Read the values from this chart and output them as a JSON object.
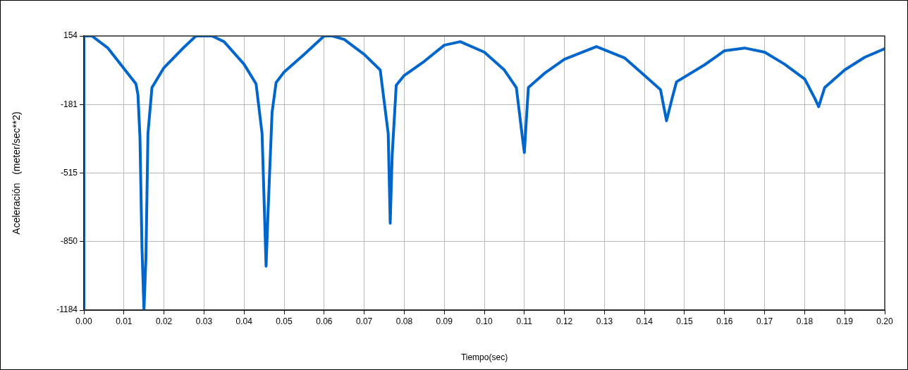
{
  "chart_data": {
    "type": "line",
    "xlabel": "Tiempo(sec)",
    "ylabel": "Aceleración   (meter/sec**2)",
    "x": [
      0,
      0,
      0.002,
      0.006,
      0.01,
      0.013,
      0.0135,
      0.014,
      0.0145,
      0.015,
      0.0155,
      0.016,
      0.017,
      0.02,
      0.025,
      0.028,
      0.032,
      0.035,
      0.04,
      0.043,
      0.0445,
      0.0455,
      0.046,
      0.047,
      0.048,
      0.05,
      0.055,
      0.06,
      0.062,
      0.065,
      0.07,
      0.074,
      0.076,
      0.0765,
      0.077,
      0.078,
      0.08,
      0.085,
      0.09,
      0.094,
      0.1,
      0.105,
      0.108,
      0.1095,
      0.11,
      0.1105,
      0.111,
      0.115,
      0.12,
      0.128,
      0.135,
      0.14,
      0.144,
      0.1455,
      0.147,
      0.148,
      0.155,
      0.16,
      0.165,
      0.17,
      0.175,
      0.18,
      0.1825,
      0.1835,
      0.185,
      0.19,
      0.195,
      0.2
    ],
    "series": [
      {
        "color": "#0066cc",
        "values": [
          -1184,
          154,
          154,
          95,
          -5,
          -80,
          -132,
          -339,
          -874,
          -1184,
          -925,
          -322,
          -98,
          -1,
          99,
          154,
          154,
          126,
          16,
          -80,
          -322,
          -970,
          -700,
          -218,
          -74,
          -22,
          64,
          154,
          154,
          137,
          64,
          -12,
          -322,
          -760,
          -425,
          -87,
          -39,
          30,
          109,
          126,
          75,
          -12,
          -98,
          -339,
          -415,
          -253,
          -98,
          -29,
          40,
          102,
          47,
          -39,
          -108,
          -260,
          -143,
          -70,
          13,
          82,
          95,
          75,
          16,
          -56,
          -149,
          -191,
          -98,
          -12,
          50,
          92
        ]
      }
    ],
    "xlim": [
      0,
      0.2
    ],
    "xticks": [
      {
        "value": 0,
        "label": "0.00"
      },
      0.01,
      0.02,
      0.03,
      0.04,
      0.05,
      0.06,
      0.07,
      0.08,
      0.09,
      {
        "value": 0.1,
        "label": "0.10"
      },
      0.11,
      0.12,
      0.13,
      0.14,
      0.15,
      0.16,
      0.17,
      0.18,
      0.19,
      {
        "value": 0.2,
        "label": "0.20"
      }
    ],
    "ylim": [
      -1184,
      154
    ],
    "yticks": [
      -1184,
      -850,
      -515,
      -181,
      154
    ],
    "grid": true,
    "legend": false,
    "marker": "none",
    "line_style": "solid"
  }
}
